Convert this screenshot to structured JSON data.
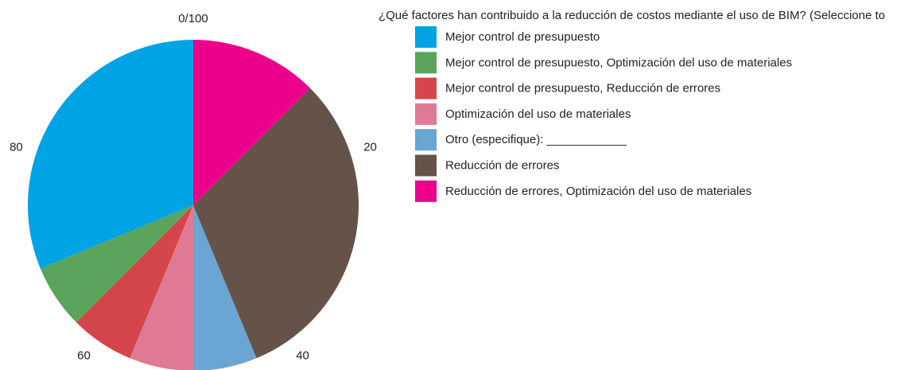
{
  "chart_data": {
    "type": "pie",
    "title": "¿Qué factores han contribuido a la reducción de costos mediante el uso de BIM? (Seleccione to",
    "categories": [
      "Mejor control de presupuesto",
      "Mejor control de presupuesto, Optimización del uso de materiales",
      "Mejor control de presupuesto, Reducción de errores",
      "Optimización del uso de materiales",
      "Otro (especifique): ____________",
      "Reducción de errores",
      "Reducción de errores, Optimización del uso de materiales"
    ],
    "values": [
      31.25,
      6.25,
      6.25,
      6.25,
      6.25,
      31.25,
      12.5
    ],
    "colors": [
      "#00a4e4",
      "#5ba45c",
      "#d5454c",
      "#e07a94",
      "#6aa5d3",
      "#65534a",
      "#ec008c"
    ],
    "direction": "counterclockwise",
    "start_angle": "top",
    "ticks": [
      {
        "value": 0,
        "label": "0/100"
      },
      20,
      40,
      60,
      80
    ],
    "legend": "right"
  }
}
